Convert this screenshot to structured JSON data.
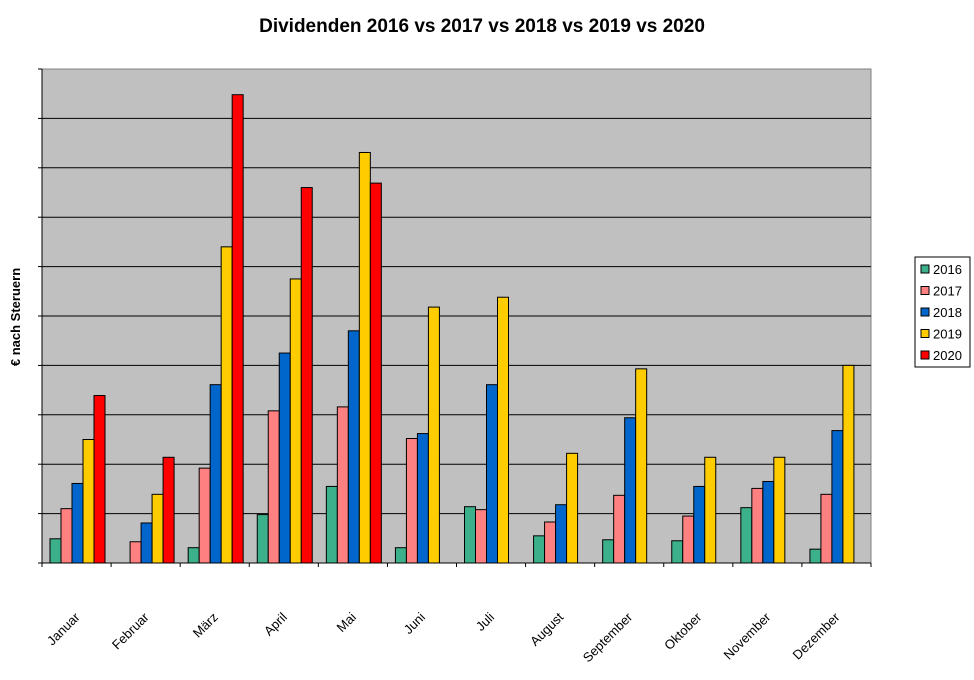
{
  "chart_data": {
    "type": "bar",
    "title": "Dividenden 2016 vs 2017 vs 2018 vs 2019 vs 2020",
    "ylabel": "€ nach Steruern",
    "xlabel": "",
    "categories": [
      "Januar",
      "Februar",
      "März",
      "April",
      "Mai",
      "Juni",
      "Juli",
      "August",
      "September",
      "Oktober",
      "November",
      "Dezember"
    ],
    "ylim": [
      0,
      100
    ],
    "grid": true,
    "legend": "right",
    "series": [
      {
        "name": "2016",
        "color": "#3cb08a",
        "values": [
          4.9,
          0,
          3.1,
          9.8,
          15.5,
          3.1,
          11.4,
          5.5,
          4.7,
          4.5,
          11.2,
          2.8
        ]
      },
      {
        "name": "2017",
        "color": "#ff8080",
        "values": [
          11.0,
          4.3,
          19.2,
          30.8,
          31.6,
          25.2,
          10.8,
          8.3,
          13.7,
          9.5,
          15.1,
          13.9
        ]
      },
      {
        "name": "2018",
        "color": "#0066cc",
        "values": [
          16.1,
          8.1,
          36.1,
          42.5,
          47.0,
          26.2,
          36.1,
          11.8,
          29.4,
          15.5,
          16.5,
          26.8
        ]
      },
      {
        "name": "2019",
        "color": "#ffcc00",
        "values": [
          25.0,
          13.9,
          64.0,
          57.5,
          83.1,
          51.8,
          53.8,
          22.2,
          39.3,
          21.4,
          21.4,
          40.0
        ]
      },
      {
        "name": "2020",
        "color": "#ff0000",
        "values": [
          33.9,
          21.4,
          94.8,
          76.0,
          76.9,
          null,
          null,
          null,
          null,
          null,
          null,
          null
        ]
      }
    ]
  }
}
